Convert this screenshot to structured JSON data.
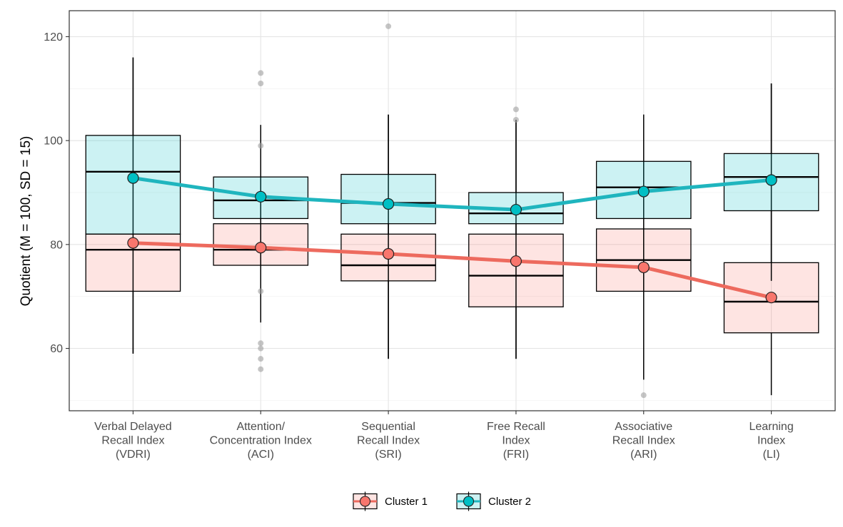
{
  "chart_data": {
    "type": "boxplot",
    "ylabel": "Quotient (M = 100, SD = 15)",
    "xlabel": "",
    "ylim": [
      48,
      125
    ],
    "yticks": [
      60,
      80,
      100,
      120
    ],
    "grid": true,
    "legend_position": "bottom",
    "categories": [
      [
        "Verbal Delayed",
        "Recall Index",
        "(VDRI)"
      ],
      [
        "Attention/",
        "Concentration Index",
        "(ACI)"
      ],
      [
        "Sequential",
        "Recall Index",
        "(SRI)"
      ],
      [
        "Free Recall",
        "Index",
        "(FRI)"
      ],
      [
        "Associative",
        "Recall Index",
        "(ARI)"
      ],
      [
        "Learning",
        "Index",
        "(LI)"
      ]
    ],
    "series": [
      {
        "name": "Cluster 1",
        "line_color": "#ed6a5e",
        "fill_color": "#f8766d",
        "means": [
          80.3,
          79.4,
          78.2,
          76.8,
          75.6,
          69.8
        ],
        "boxes": [
          {
            "q1": 71,
            "median": 79,
            "q3": 82,
            "whisker_low": 59,
            "whisker_high": 116
          },
          {
            "q1": 76,
            "median": 79,
            "q3": 84,
            "whisker_low": 65,
            "whisker_high": 103
          },
          {
            "q1": 73,
            "median": 76,
            "q3": 82,
            "whisker_low": 58,
            "whisker_high": 105
          },
          {
            "q1": 68,
            "median": 74,
            "q3": 82,
            "whisker_low": 58,
            "whisker_high": 104
          },
          {
            "q1": 71,
            "median": 77,
            "q3": 83,
            "whisker_low": 54,
            "whisker_high": 105
          },
          {
            "q1": 63,
            "median": 69,
            "q3": 76.5,
            "whisker_low": 51,
            "whisker_high": 111
          }
        ]
      },
      {
        "name": "Cluster 2",
        "line_color": "#1fb5be",
        "fill_color": "#00bfc4",
        "means": [
          92.8,
          89.2,
          87.8,
          86.7,
          90.2,
          92.4
        ],
        "boxes": [
          {
            "q1": 82,
            "median": 94,
            "q3": 101,
            "whisker_low": 59,
            "whisker_high": 116
          },
          {
            "q1": 85,
            "median": 88.5,
            "q3": 93,
            "whisker_low": 65,
            "whisker_high": 103
          },
          {
            "q1": 84,
            "median": 88,
            "q3": 93.5,
            "whisker_low": 58,
            "whisker_high": 105
          },
          {
            "q1": 84,
            "median": 86,
            "q3": 90,
            "whisker_low": 58,
            "whisker_high": 104
          },
          {
            "q1": 85,
            "median": 91,
            "q3": 96,
            "whisker_low": 54,
            "whisker_high": 105
          },
          {
            "q1": 86.5,
            "median": 93,
            "q3": 97.5,
            "whisker_low": 73,
            "whisker_high": 111
          }
        ]
      }
    ],
    "outliers": [
      {
        "category": 1,
        "values": [
          113,
          111,
          99,
          71,
          61,
          60,
          58,
          56
        ]
      },
      {
        "category": 2,
        "values": [
          122
        ]
      },
      {
        "category": 3,
        "values": [
          106,
          104
        ]
      },
      {
        "category": 4,
        "values": [
          51
        ]
      }
    ]
  }
}
